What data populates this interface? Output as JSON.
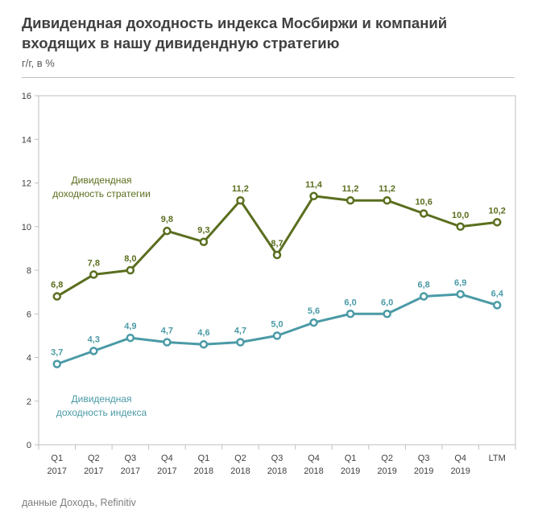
{
  "header": {
    "title_line1": "Дивидендная доходность индекса Мосбиржи и компаний",
    "title_line2": "входящих в нашу дивидендную стратегию",
    "subtitle": "г/г, в %"
  },
  "footer": {
    "source": "данные Доходъ, Refinitiv"
  },
  "chart_data": {
    "type": "line",
    "title": "Дивидендная доходность индекса Мосбиржи и компаний входящих в нашу дивидендную стратегию",
    "ylabel": "г/г, в %",
    "ylim": [
      0,
      16
    ],
    "yticks": [
      "0",
      "2",
      "4",
      "6",
      "8",
      "10",
      "12",
      "14",
      "16"
    ],
    "grid": false,
    "categories": [
      [
        "Q1",
        "2017"
      ],
      [
        "Q2",
        "2017"
      ],
      [
        "Q3",
        "2017"
      ],
      [
        "Q4",
        "2017"
      ],
      [
        "Q1",
        "2018"
      ],
      [
        "Q2",
        "2018"
      ],
      [
        "Q3",
        "2018"
      ],
      [
        "Q4",
        "2018"
      ],
      [
        "Q1",
        "2019"
      ],
      [
        "Q2",
        "2019"
      ],
      [
        "Q3",
        "2019"
      ],
      [
        "Q4",
        "2019"
      ],
      [
        "LTM",
        ""
      ]
    ],
    "series": [
      {
        "name_line1": "Дивидендная",
        "name_line2": "доходность стратегии",
        "color": "#5a6e1e",
        "values": [
          6.8,
          7.8,
          8.0,
          9.8,
          9.3,
          11.2,
          8.7,
          11.4,
          11.2,
          11.2,
          10.6,
          10.0,
          10.2
        ],
        "labels": [
          "6,8",
          "7,8",
          "8,0",
          "9,8",
          "9,3",
          "11,2",
          "8,7",
          "11,4",
          "11,2",
          "11,2",
          "10,6",
          "10,0",
          "10,2"
        ]
      },
      {
        "name_line1": "Дивидендная",
        "name_line2": "доходность индекса",
        "color": "#4a9aa6",
        "values": [
          3.7,
          4.3,
          4.9,
          4.7,
          4.6,
          4.7,
          5.0,
          5.6,
          6.0,
          6.0,
          6.8,
          6.9,
          6.4
        ],
        "labels": [
          "3,7",
          "4,3",
          "4,9",
          "4,7",
          "4,6",
          "4,7",
          "5,0",
          "5,6",
          "6,0",
          "6,0",
          "6,8",
          "6,9",
          "6,4"
        ]
      }
    ]
  }
}
